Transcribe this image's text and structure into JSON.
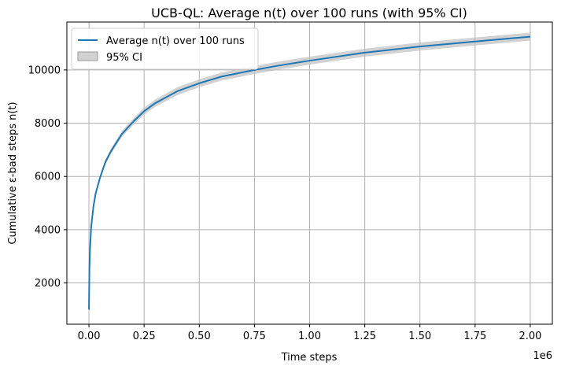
{
  "chart_data": {
    "type": "line",
    "title": "UCB-QL: Average n(t) over 100 runs (with 95% CI)",
    "xlabel": "Time steps",
    "ylabel": "Cumulative ε-bad steps n(t)",
    "x_offset_label": "1e6",
    "xlim": [
      -0.1,
      2.1
    ],
    "ylim": [
      450,
      11800
    ],
    "x_scale_factor": 1000000,
    "x_ticks": [
      0,
      0.25,
      0.5,
      0.75,
      1.0,
      1.25,
      1.5,
      1.75,
      2.0
    ],
    "x_tick_labels": [
      "0.00",
      "0.25",
      "0.50",
      "0.75",
      "1.00",
      "1.25",
      "1.50",
      "1.75",
      "2.00"
    ],
    "y_ticks": [
      2000,
      4000,
      6000,
      8000,
      10000
    ],
    "y_tick_labels": [
      "2000",
      "4000",
      "6000",
      "8000",
      "10000"
    ],
    "grid": true,
    "legend_position": "top-left",
    "series": [
      {
        "name": "Average n(t) over 100 runs",
        "kind": "line",
        "color": "#1f77b4",
        "x": [
          0,
          0.002,
          0.005,
          0.01,
          0.02,
          0.03,
          0.05,
          0.075,
          0.1,
          0.15,
          0.2,
          0.25,
          0.3,
          0.4,
          0.5,
          0.6,
          0.75,
          0.85,
          1.0,
          1.25,
          1.5,
          1.75,
          2.0
        ],
        "y": [
          1000,
          2500,
          3300,
          4100,
          4850,
          5350,
          5950,
          6550,
          6950,
          7600,
          8050,
          8450,
          8750,
          9200,
          9500,
          9750,
          10000,
          10150,
          10350,
          10650,
          10880,
          11070,
          11250
        ]
      },
      {
        "name": "95% CI",
        "kind": "band",
        "color": "#bfbfbf",
        "x": [
          0,
          0.002,
          0.005,
          0.01,
          0.02,
          0.03,
          0.05,
          0.075,
          0.1,
          0.15,
          0.2,
          0.25,
          0.3,
          0.4,
          0.5,
          0.6,
          0.75,
          0.85,
          1.0,
          1.25,
          1.5,
          1.75,
          2.0
        ],
        "lower": [
          980,
          2470,
          3260,
          4050,
          4790,
          5280,
          5870,
          6460,
          6850,
          7490,
          7930,
          8320,
          8610,
          9050,
          9350,
          9600,
          9850,
          10000,
          10200,
          10500,
          10730,
          10920,
          11100
        ],
        "upper": [
          1020,
          2530,
          3340,
          4150,
          4910,
          5420,
          6030,
          6640,
          7050,
          7710,
          8170,
          8580,
          8890,
          9350,
          9650,
          9900,
          10150,
          10300,
          10500,
          10800,
          11030,
          11220,
          11400
        ]
      }
    ]
  }
}
